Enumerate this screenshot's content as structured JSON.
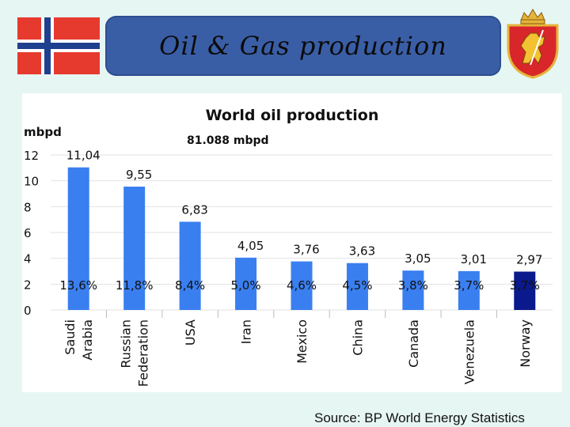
{
  "slide": {
    "title": "Oil & Gas production",
    "source": "Source: BP World Energy Statistics"
  },
  "colors": {
    "background": "#e6f6f3",
    "banner": "#3a5ea6",
    "bar": "#3a7ff0",
    "bar_highlight": "#0a1a8c",
    "flag_red": "#e63a2e",
    "flag_blue": "#1f3f8f"
  },
  "icons": {
    "flag": "norway-flag-icon",
    "coat": "norway-coat-of-arms-icon"
  },
  "chart_data": {
    "type": "bar",
    "title": "World oil production",
    "subtitle": "81.088 mbpd",
    "ylabel": "mbpd",
    "xlabel": "",
    "ylim": [
      0,
      12
    ],
    "yticks": [
      "0",
      "2",
      "4",
      "6",
      "8",
      "10",
      "12"
    ],
    "grid": true,
    "categories": [
      "Saudi Arabia",
      "Russian Federation",
      "USA",
      "Iran",
      "Mexico",
      "China",
      "Canada",
      "Venezuela",
      "Norway"
    ],
    "category_lines": [
      [
        "Saudi",
        "Arabia"
      ],
      [
        "Russian",
        "Federation"
      ],
      [
        "USA"
      ],
      [
        "Iran"
      ],
      [
        "Mexico"
      ],
      [
        "China"
      ],
      [
        "Canada"
      ],
      [
        "Venezuela"
      ],
      [
        "Norway"
      ]
    ],
    "values": [
      11.04,
      9.55,
      6.83,
      4.05,
      3.76,
      3.63,
      3.05,
      3.01,
      2.97
    ],
    "value_labels": [
      "11,04",
      "9,55",
      "6,83",
      "4,05",
      "3,76",
      "3,63",
      "3,05",
      "3,01",
      "2,97"
    ],
    "share_labels": [
      "13,6%",
      "11,8%",
      "8,4%",
      "5,0%",
      "4,6%",
      "4,5%",
      "3,8%",
      "3,7%",
      "3,7%"
    ],
    "highlight_index": 8
  }
}
